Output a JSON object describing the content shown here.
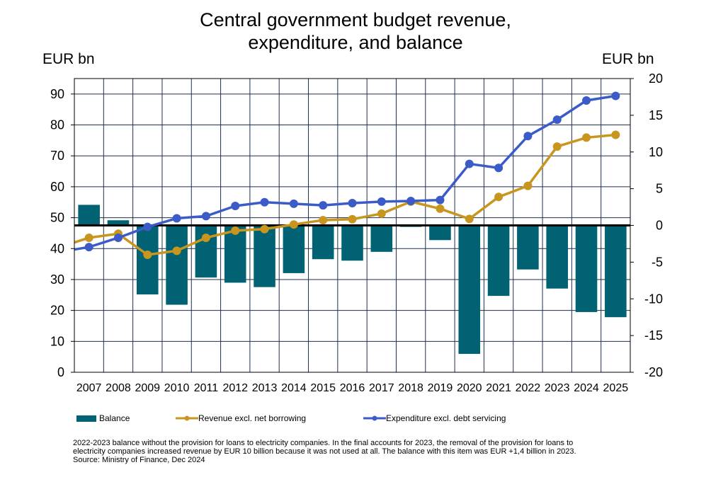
{
  "chart_data": {
    "type": "bar+line",
    "title": [
      "Central government budget revenue,",
      "expenditure, and balance"
    ],
    "left_axis": {
      "unit": "EUR bn",
      "range": [
        0,
        95
      ],
      "ticks": [
        0,
        10,
        20,
        30,
        40,
        50,
        60,
        70,
        80,
        90
      ]
    },
    "right_axis": {
      "unit": "EUR bn",
      "range": [
        -20,
        20
      ],
      "ticks": [
        20,
        15,
        10,
        5,
        0,
        -5,
        -10,
        -15,
        -20
      ]
    },
    "grid": true,
    "categories": [
      "2007",
      "2008",
      "2009",
      "2010",
      "2011",
      "2012",
      "2013",
      "2014",
      "2015",
      "2016",
      "2017",
      "2018",
      "2019",
      "2020",
      "2021",
      "2022",
      "2023",
      "2024",
      "2025"
    ],
    "series": [
      {
        "name": "Balance",
        "type": "bar",
        "axis": "right",
        "color": "#006272",
        "values": [
          2.8,
          0.7,
          -9.4,
          -10.8,
          -7.1,
          -7.8,
          -8.4,
          -6.5,
          -4.6,
          -4.8,
          -3.6,
          -0.2,
          -2.0,
          -17.5,
          -9.6,
          -6.0,
          -8.6,
          -11.8,
          -12.5
        ]
      },
      {
        "name": "Revenue excl. net borrowing",
        "type": "line",
        "axis": "left",
        "color": "#C8961E",
        "values": [
          43.5,
          44.8,
          38.0,
          39.3,
          43.5,
          45.8,
          46.3,
          47.8,
          49.2,
          49.5,
          51.3,
          55.2,
          52.9,
          49.6,
          56.7,
          60.3,
          73.0,
          75.9,
          76.8
        ]
      },
      {
        "name": "Expenditure excl. debt servicing",
        "type": "line",
        "axis": "left",
        "color": "#3B5BC8",
        "values": [
          40.5,
          43.5,
          47.0,
          49.8,
          50.5,
          53.8,
          55.0,
          54.5,
          54.0,
          54.7,
          55.2,
          55.4,
          55.7,
          67.4,
          66.1,
          76.4,
          81.7,
          87.9,
          89.4
        ]
      }
    ],
    "left_edge_values": {
      "revenue": 42.0,
      "expenditure": 39.7
    },
    "legend_position": "bottom"
  },
  "footnote": [
    "2022-2023 balance without the provision for loans to electricity companies. In the final accounts for 2023, the removal of the provision for loans to",
    "electricity companies increased revenue by EUR 10 billion because it was not used at all. The balance with this item was EUR +1,4 billion in 2023.",
    "Source: Ministry of Finance, Dec 2024"
  ]
}
